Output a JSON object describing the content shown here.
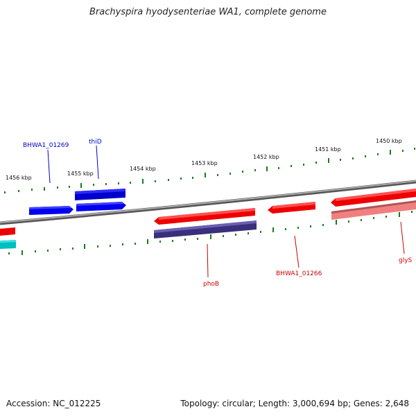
{
  "title": "Brachyspira hyodysenteriae WA1, complete genome",
  "footer": {
    "accession": "Accession: NC_012225",
    "summary": "Topology: circular; Length: 3,000,694 bp; Genes: 2,648"
  },
  "ruler": {
    "labels": [
      "1456 kbp",
      "1455 kbp",
      "1454 kbp",
      "1453 kbp",
      "1452 kbp",
      "1451 kbp",
      "1450 kbp"
    ]
  },
  "gene_labels": {
    "blue": [
      "BHWA1_01269",
      "thiD"
    ],
    "red": [
      "phoB",
      "BHWA1_01266",
      "glyS"
    ]
  },
  "colors": {
    "forward_cds": "#0000ee",
    "reverse_cds": "#ee0000",
    "cds_light": "#f08080",
    "rna": "#00cccc",
    "gene_bar": "#3a2f7a",
    "backbone": "#808080",
    "tick": "#1a7a1a",
    "label_blue": "#0000cc",
    "label_red": "#cc0000"
  }
}
